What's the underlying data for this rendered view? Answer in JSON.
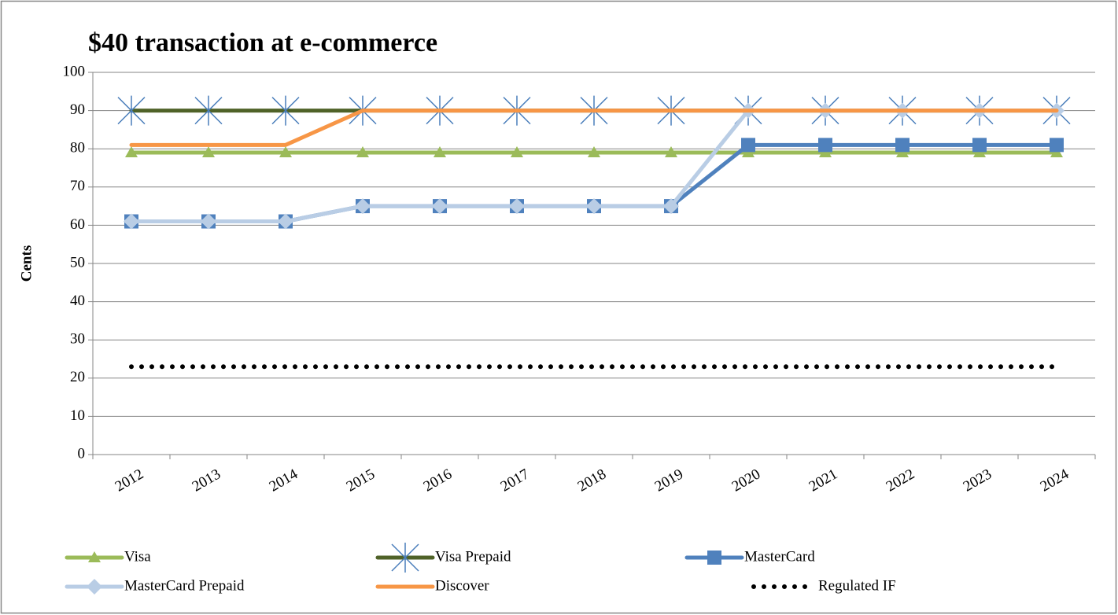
{
  "chart_data": {
    "type": "line",
    "title": "$40 transaction at e-commerce",
    "y_label": "Cents",
    "categories": [
      "2012",
      "2013",
      "2014",
      "2015",
      "2016",
      "2017",
      "2018",
      "2019",
      "2020",
      "2021",
      "2022",
      "2023",
      "2024"
    ],
    "ylim": [
      0,
      100
    ],
    "yticks": [
      0,
      10,
      20,
      30,
      40,
      50,
      60,
      70,
      80,
      90,
      100
    ],
    "grid": true,
    "legend": "bottom",
    "series": [
      {
        "name": "Visa",
        "color": "#9bbb59",
        "marker": "triangle",
        "values": [
          79,
          79,
          79,
          79,
          79,
          79,
          79,
          79,
          79,
          79,
          79,
          79,
          79
        ]
      },
      {
        "name": "Visa Prepaid",
        "color": "#4f6228",
        "marker": "star",
        "marker_color": "#4a7ebb",
        "values": [
          90,
          90,
          90,
          90,
          90,
          90,
          90,
          90,
          90,
          90,
          90,
          90,
          90
        ]
      },
      {
        "name": "MasterCard",
        "color": "#4f81bd",
        "marker": "square",
        "values": [
          61,
          61,
          61,
          65,
          65,
          65,
          65,
          65,
          81,
          81,
          81,
          81,
          81
        ]
      },
      {
        "name": "MasterCard Prepaid",
        "color": "#b9cde5",
        "marker": "diamond",
        "values": [
          61,
          61,
          61,
          65,
          65,
          65,
          65,
          65,
          90,
          90,
          90,
          90,
          90
        ]
      },
      {
        "name": "Discover",
        "color": "#f79646",
        "marker": "none",
        "values": [
          81,
          81,
          81,
          90,
          90,
          90,
          90,
          90,
          90,
          90,
          90,
          90,
          90
        ]
      },
      {
        "name": "Regulated IF",
        "color": "#000000",
        "marker": "dots",
        "values": [
          23,
          23,
          23,
          23,
          23,
          23,
          23,
          23,
          23,
          23,
          23,
          23,
          23
        ]
      }
    ]
  }
}
